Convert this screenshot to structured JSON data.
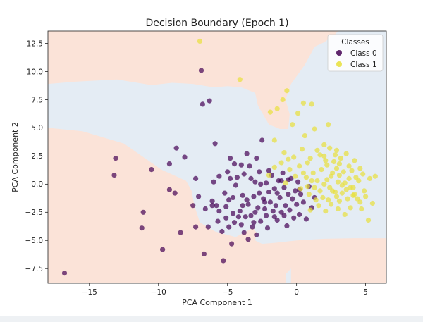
{
  "chart_data": {
    "type": "scatter",
    "title": "Decision Boundary (Epoch 1)",
    "xlabel": "PCA Component 1",
    "ylabel": "PCA Component 2",
    "xlim": [
      -18,
      6.5
    ],
    "ylim": [
      -8.8,
      13.6
    ],
    "xticks": [
      -15,
      -10,
      -5,
      0,
      5
    ],
    "yticks": [
      -7.5,
      -5.0,
      -2.5,
      0.0,
      2.5,
      5.0,
      7.5,
      10.0,
      12.5
    ],
    "xtick_labels": [
      "−15",
      "−10",
      "−5",
      "0",
      "5"
    ],
    "ytick_labels": [
      "−7.5",
      "−5.0",
      "−2.5",
      "0.0",
      "2.5",
      "5.0",
      "7.5",
      "10.0",
      "12.5"
    ],
    "grid": false,
    "legend": {
      "title": "Classes",
      "placement": "top-right",
      "entries": [
        "Class 0",
        "Class 1"
      ]
    },
    "colors": {
      "class0": "#440154",
      "class1": "#e8df3a",
      "region0": "#fbe3d8",
      "region1": "#e4ecf4"
    },
    "region_class1": [
      [
        -18,
        8.9
      ],
      [
        -16,
        9.1
      ],
      [
        -13,
        9.3
      ],
      [
        -10.5,
        8.8
      ],
      [
        -9,
        9.0
      ],
      [
        -7.5,
        8.9
      ],
      [
        -6,
        8.6
      ],
      [
        -5,
        8.7
      ],
      [
        -4,
        8.6
      ],
      [
        -3,
        8.1
      ],
      [
        -2.8,
        7.0
      ],
      [
        -2.0,
        5.3
      ],
      [
        -1.2,
        4.9
      ],
      [
        -0.6,
        4.9
      ],
      [
        -0.5,
        6.2
      ],
      [
        -0.8,
        7.5
      ],
      [
        -0.4,
        8.9
      ],
      [
        0.6,
        10.6
      ],
      [
        1.0,
        11.5
      ],
      [
        1.3,
        12.2
      ],
      [
        2.0,
        12.6
      ],
      [
        2.8,
        13.3
      ],
      [
        3.0,
        13.6
      ],
      [
        6.5,
        13.6
      ],
      [
        6.5,
        -4.8
      ],
      [
        4.2,
        -4.8
      ],
      [
        2.0,
        -4.85
      ],
      [
        0.0,
        -5.0
      ],
      [
        -1.5,
        -5.2
      ],
      [
        -2.5,
        -5.3
      ],
      [
        -3.0,
        -5.0
      ],
      [
        -2.9,
        -4.3
      ],
      [
        -3.2,
        -3.8
      ],
      [
        -5.6,
        -1.0
      ],
      [
        -6.1,
        -1.2
      ],
      [
        -6.3,
        -0.3
      ],
      [
        -6.0,
        0.5
      ],
      [
        -6.5,
        1.2
      ],
      [
        -6.2,
        1.9
      ],
      [
        -6.7,
        2.6
      ],
      [
        -6.5,
        3.3
      ],
      [
        -5.5,
        4.0
      ],
      [
        -3.9,
        4.5
      ],
      [
        -2.2,
        4.2
      ],
      [
        -1.9,
        3.4
      ],
      [
        -1.4,
        3.0
      ],
      [
        -0.3,
        3.6
      ],
      [
        0.4,
        2.7
      ],
      [
        0.6,
        1.8
      ],
      [
        -0.2,
        1.6
      ],
      [
        -0.5,
        0.9
      ],
      [
        -1.6,
        1.1
      ],
      [
        -2.4,
        2.2
      ],
      [
        -3.3,
        2.4
      ],
      [
        -4.6,
        3.0
      ],
      [
        -5.6,
        3.0
      ],
      [
        -6.0,
        2.0
      ],
      [
        -5.5,
        1.0
      ],
      [
        -4.5,
        0.3
      ],
      [
        -3.2,
        -0.2
      ],
      [
        -1.8,
        -0.4
      ],
      [
        -0.7,
        -1.3
      ],
      [
        -0.4,
        -2.3
      ],
      [
        -0.9,
        -3.0
      ],
      [
        -1.9,
        -2.9
      ],
      [
        -2.9,
        -3.4
      ],
      [
        -3.2,
        -3.9
      ],
      [
        -4.4,
        -4.7
      ],
      [
        -5.9,
        -4.2
      ],
      [
        -7.0,
        -3.4
      ],
      [
        -7.4,
        -1.9
      ],
      [
        -7.6,
        -0.6
      ],
      [
        -8.0,
        0.3
      ],
      [
        -9.8,
        1.3
      ],
      [
        -12.5,
        3.6
      ],
      [
        -15.5,
        4.7
      ],
      [
        -18,
        5.0
      ]
    ],
    "region_class1_extra": [
      [
        [
          -6.2,
          4.6
        ],
        [
          -5.8,
          4.3
        ],
        [
          -5.5,
          4.6
        ],
        [
          -5.8,
          4.9
        ]
      ],
      [
        [
          -0.8,
          -8.0
        ],
        [
          -0.4,
          -7.5
        ],
        [
          -0.4,
          -8.8
        ],
        [
          -0.8,
          -8.8
        ]
      ],
      [
        [
          6.0,
          13.0
        ],
        [
          6.5,
          13.0
        ],
        [
          6.5,
          13.6
        ],
        [
          6.0,
          13.6
        ]
      ]
    ],
    "series": [
      {
        "name": "Class 0",
        "points": [
          [
            -16.8,
            -7.9
          ],
          [
            -13.1,
            2.3
          ],
          [
            -13.2,
            0.8
          ],
          [
            -11.1,
            -2.5
          ],
          [
            -11.2,
            -3.9
          ],
          [
            -10.5,
            1.3
          ],
          [
            -9.7,
            -5.8
          ],
          [
            -9.2,
            1.8
          ],
          [
            -9.2,
            -0.5
          ],
          [
            -8.8,
            -0.8
          ],
          [
            -8.7,
            3.2
          ],
          [
            -8.4,
            -4.3
          ],
          [
            -8.1,
            2.4
          ],
          [
            -7.5,
            -1.9
          ],
          [
            -7.3,
            0.5
          ],
          [
            -7.3,
            -3.8
          ],
          [
            -7.1,
            -1.1
          ],
          [
            -6.9,
            10.1
          ],
          [
            -6.8,
            7.1
          ],
          [
            -6.7,
            -6.2
          ],
          [
            -6.6,
            -2.2
          ],
          [
            -6.3,
            7.4
          ],
          [
            -6.4,
            -3.8
          ],
          [
            -6.0,
            0.2
          ],
          [
            -6.1,
            -1.5
          ],
          [
            -5.9,
            3.6
          ],
          [
            -5.8,
            -1.9
          ],
          [
            -5.6,
            -2.4
          ],
          [
            -5.4,
            -4.2
          ],
          [
            -5.3,
            -6.8
          ],
          [
            -5.2,
            -0.8
          ],
          [
            -5.1,
            -2.0
          ],
          [
            -5.0,
            1.1
          ],
          [
            -4.9,
            -1.4
          ],
          [
            -4.8,
            2.3
          ],
          [
            -4.7,
            -5.3
          ],
          [
            -4.6,
            -1.2
          ],
          [
            -4.5,
            -3.4
          ],
          [
            -4.3,
            0.6
          ],
          [
            -4.1,
            -2.4
          ],
          [
            -4.0,
            1.7
          ],
          [
            -3.9,
            -1.9
          ],
          [
            -3.8,
            -4.3
          ],
          [
            -3.7,
            -2.9
          ],
          [
            -3.6,
            2.7
          ],
          [
            -3.5,
            -1.8
          ],
          [
            -3.4,
            1.6
          ],
          [
            -3.3,
            -2.8
          ],
          [
            -3.2,
            -3.8
          ],
          [
            -3.1,
            -1.1
          ],
          [
            -3.0,
            0.2
          ],
          [
            -2.9,
            -4.5
          ],
          [
            -2.8,
            -2.1
          ],
          [
            -2.7,
            1.1
          ],
          [
            -2.6,
            -3.3
          ],
          [
            -2.5,
            3.9
          ],
          [
            -2.4,
            -1.3
          ],
          [
            -2.3,
            -2.2
          ],
          [
            -2.2,
            0.1
          ],
          [
            -2.1,
            -3.9
          ],
          [
            -2.0,
            1.2
          ],
          [
            -1.9,
            -1.6
          ],
          [
            -1.8,
            0.8
          ],
          [
            -1.7,
            -2.4
          ],
          [
            -1.6,
            -0.4
          ],
          [
            -1.5,
            -1.9
          ],
          [
            -1.4,
            -3.2
          ],
          [
            -1.3,
            0.3
          ],
          [
            -1.2,
            -1.2
          ],
          [
            -1.1,
            -2.5
          ],
          [
            -1.0,
            1.0
          ],
          [
            -0.9,
            -0.3
          ],
          [
            -0.8,
            -1.9
          ],
          [
            -0.7,
            -3.7
          ],
          [
            -0.6,
            -0.9
          ],
          [
            -0.5,
            -2.3
          ],
          [
            -0.4,
            0.5
          ],
          [
            -0.3,
            -1.3
          ],
          [
            -0.2,
            -3.0
          ],
          [
            -0.1,
            -0.6
          ],
          [
            0.0,
            -1.8
          ],
          [
            0.1,
            0.2
          ],
          [
            0.2,
            -2.7
          ],
          [
            0.3,
            -0.9
          ],
          [
            0.5,
            -1.6
          ],
          [
            0.7,
            -3.1
          ],
          [
            0.9,
            -0.2
          ],
          [
            1.1,
            -2.1
          ],
          [
            1.3,
            -1.2
          ],
          [
            -4.2,
            -2.9
          ],
          [
            -4.4,
            -0.1
          ],
          [
            -3.8,
            0.9
          ],
          [
            -3.1,
            -3.4
          ],
          [
            -2.7,
            -0.8
          ],
          [
            -5.6,
            0.7
          ],
          [
            -4.9,
            -3.8
          ],
          [
            -3.5,
            -4.9
          ],
          [
            -2.3,
            -1.6
          ],
          [
            -1.6,
            -2.9
          ],
          [
            -0.9,
            -2.8
          ],
          [
            -4.5,
            1.8
          ],
          [
            -3.9,
            -1.0
          ],
          [
            -5.1,
            -3.0
          ],
          [
            -2.0,
            -0.7
          ],
          [
            -4.0,
            -3.6
          ],
          [
            -3.0,
            -2.5
          ],
          [
            -4.6,
            -2.6
          ],
          [
            -6.1,
            -1.9
          ],
          [
            -5.7,
            -3.3
          ],
          [
            -3.3,
            0.5
          ],
          [
            -2.6,
            0.0
          ],
          [
            -1.4,
            -0.8
          ],
          [
            -0.6,
            0.4
          ],
          [
            -3.6,
            -1.4
          ],
          [
            -4.8,
            0.5
          ],
          [
            -2.2,
            -2.8
          ],
          [
            -1.1,
            0.3
          ],
          [
            0.2,
            -0.5
          ],
          [
            -2.9,
            2.3
          ]
        ]
      },
      {
        "name": "Class 1",
        "points": [
          [
            -7.0,
            12.7
          ],
          [
            -4.1,
            9.3
          ],
          [
            -1.9,
            6.4
          ],
          [
            -1.4,
            6.7
          ],
          [
            -1.0,
            7.5
          ],
          [
            -0.7,
            8.3
          ],
          [
            -0.3,
            5.3
          ],
          [
            0.1,
            6.3
          ],
          [
            0.5,
            7.2
          ],
          [
            1.1,
            7.1
          ],
          [
            0.6,
            4.3
          ],
          [
            1.3,
            4.9
          ],
          [
            2.0,
            3.5
          ],
          [
            2.3,
            5.3
          ],
          [
            -1.6,
            3.9
          ],
          [
            -0.9,
            2.8
          ],
          [
            -0.2,
            2.4
          ],
          [
            0.4,
            3.1
          ],
          [
            0.8,
            1.9
          ],
          [
            1.5,
            3.0
          ],
          [
            2.0,
            2.5
          ],
          [
            2.4,
            3.2
          ],
          [
            2.8,
            2.6
          ],
          [
            3.1,
            1.8
          ],
          [
            3.6,
            2.7
          ],
          [
            4.2,
            2.1
          ],
          [
            4.6,
            1.4
          ],
          [
            5.3,
            0.5
          ],
          [
            5.5,
            -1.7
          ],
          [
            5.2,
            -3.2
          ],
          [
            4.6,
            -1.6
          ],
          [
            4.2,
            -0.9
          ],
          [
            3.9,
            -2.1
          ],
          [
            3.5,
            -2.7
          ],
          [
            3.1,
            -1.5
          ],
          [
            2.8,
            -0.7
          ],
          [
            2.5,
            -1.8
          ],
          [
            2.1,
            -2.4
          ],
          [
            1.7,
            -0.6
          ],
          [
            1.4,
            -1.4
          ],
          [
            1.0,
            -2.3
          ],
          [
            0.7,
            0.6
          ],
          [
            0.3,
            -0.4
          ],
          [
            -0.1,
            0.7
          ],
          [
            -0.5,
            1.3
          ],
          [
            -0.8,
            0.1
          ],
          [
            -1.1,
            1.9
          ],
          [
            -1.6,
            1.5
          ],
          [
            -2.0,
            0.8
          ],
          [
            1.8,
            1.3
          ],
          [
            2.2,
            0.4
          ],
          [
            2.6,
            1.0
          ],
          [
            3.0,
            0.2
          ],
          [
            3.4,
            1.1
          ],
          [
            3.8,
            0.5
          ],
          [
            4.1,
            -0.3
          ],
          [
            4.5,
            0.3
          ],
          [
            4.9,
            -0.6
          ],
          [
            2.4,
            -0.3
          ],
          [
            2.9,
            -1.1
          ],
          [
            3.3,
            -0.1
          ],
          [
            3.7,
            -1.3
          ],
          [
            1.9,
            -1.2
          ],
          [
            1.5,
            0.3
          ],
          [
            1.2,
            1.0
          ],
          [
            0.9,
            -0.9
          ],
          [
            2.7,
            2.0
          ],
          [
            3.2,
            2.3
          ],
          [
            4.0,
            1.2
          ],
          [
            4.4,
            -1.3
          ],
          [
            3.6,
            -0.5
          ],
          [
            2.0,
            0.0
          ],
          [
            2.5,
            0.7
          ],
          [
            3.1,
            0.8
          ],
          [
            3.5,
            0.1
          ],
          [
            4.3,
            0.6
          ],
          [
            4.8,
            0.9
          ],
          [
            5.0,
            -1.1
          ],
          [
            4.7,
            -2.2
          ],
          [
            3.0,
            -2.2
          ],
          [
            2.3,
            -1.4
          ],
          [
            1.6,
            -1.9
          ],
          [
            1.1,
            0.3
          ],
          [
            0.8,
            -0.2
          ],
          [
            2.2,
            1.7
          ],
          [
            2.9,
            1.4
          ],
          [
            3.3,
            -0.8
          ],
          [
            3.9,
            -0.3
          ],
          [
            1.3,
            -0.3
          ],
          [
            2.6,
            -0.6
          ],
          [
            3.8,
            1.6
          ],
          [
            4.1,
            -1.0
          ],
          [
            0.5,
            1.0
          ],
          [
            2.1,
            2.1
          ],
          [
            1.7,
            2.6
          ],
          [
            2.9,
            3.0
          ],
          [
            5.7,
            0.7
          ],
          [
            1.0,
            2.3
          ],
          [
            0.2,
            1.6
          ],
          [
            -0.6,
            2.2
          ]
        ]
      }
    ]
  }
}
